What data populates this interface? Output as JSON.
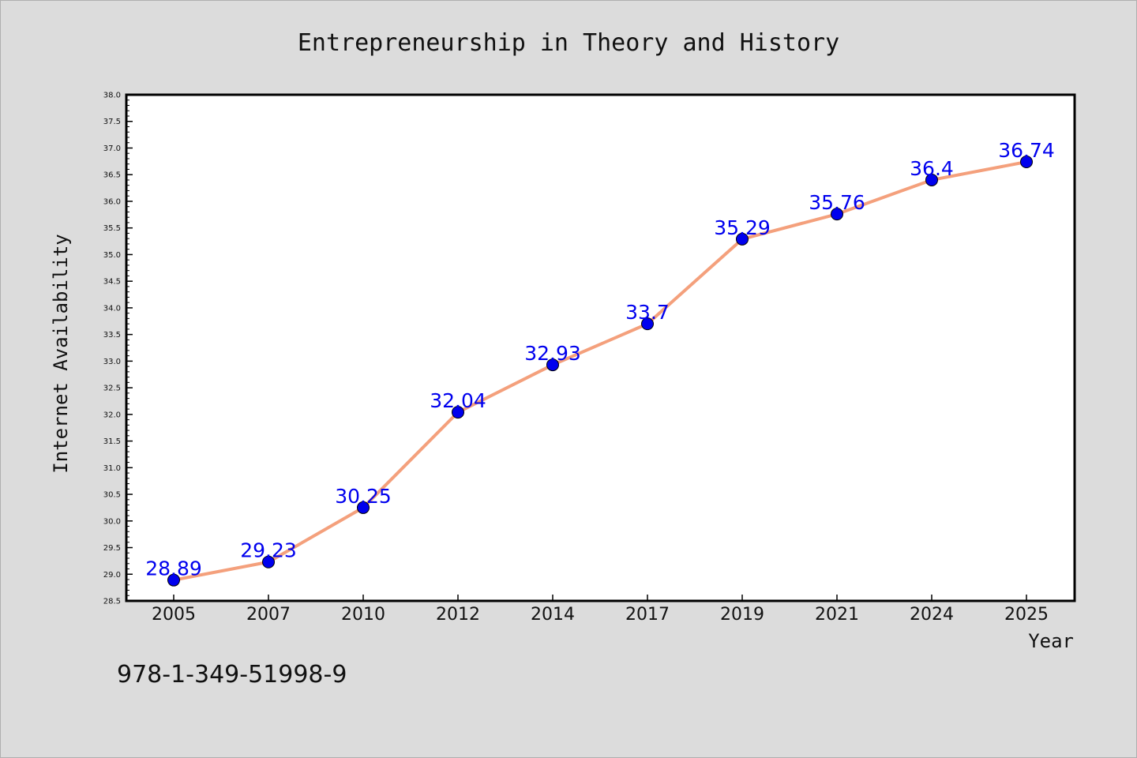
{
  "chart_data": {
    "type": "line",
    "title": "Entrepreneurship in Theory and History",
    "xlabel": "Year",
    "ylabel": "Internet Availability",
    "categories": [
      "2005",
      "2007",
      "2010",
      "2012",
      "2014",
      "2017",
      "2019",
      "2021",
      "2024",
      "2025"
    ],
    "series": [
      {
        "values": [
          28.89,
          29.23,
          30.25,
          32.04,
          32.93,
          33.7,
          35.29,
          35.76,
          36.4,
          36.74
        ],
        "labels": [
          "28.89",
          "29.23",
          "30.25",
          "32.04",
          "32.93",
          "33.7",
          "35.29",
          "35.76",
          "36.4",
          "36.74"
        ],
        "line_color": "#f4a07c",
        "marker_color": "#0000ee"
      }
    ],
    "ylim": [
      28.5,
      38.0
    ],
    "yticks": [
      "28.5",
      "29.0",
      "29.5",
      "30.0",
      "30.5",
      "31.0",
      "31.5",
      "32.0",
      "32.5",
      "33.0",
      "33.5",
      "34.0",
      "34.5",
      "35.0",
      "35.5",
      "36.0",
      "36.5",
      "37.0",
      "37.5",
      "38.0"
    ],
    "grid": false,
    "legend": "none"
  },
  "footer": {
    "isbn": "978-1-349-51998-9"
  }
}
